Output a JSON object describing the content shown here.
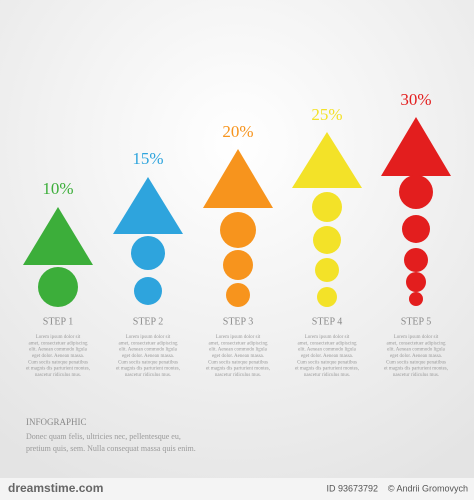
{
  "steps": [
    {
      "percent": "10%",
      "label": "STEP 1",
      "color": "#3cae3a",
      "body": [
        "Lorem ipsum dolor sit",
        "amet, consectetuer adipiscing",
        "elit. Aenean commodo ligula",
        "eget dolor. Aenean massa.",
        "Cum sociis natoque penatibus",
        "et magnis dis parturient montes,",
        "nascetur ridiculus mus."
      ]
    },
    {
      "percent": "15%",
      "label": "STEP 2",
      "color": "#2ea4dd",
      "body": [
        "Lorem ipsum dolor sit",
        "amet, consectetuer adipiscing",
        "elit. Aenean commodo ligula",
        "eget dolor. Aenean massa.",
        "Cum sociis natoque penatibus",
        "et magnis dis parturient montes,",
        "nascetur ridiculus mus."
      ]
    },
    {
      "percent": "20%",
      "label": "STEP 3",
      "color": "#f7941d",
      "body": [
        "Lorem ipsum dolor sit",
        "amet, consectetuer adipiscing",
        "elit. Aenean commodo ligula",
        "eget dolor. Aenean massa.",
        "Cum sociis natoque penatibus",
        "et magnis dis parturient montes,",
        "nascetur ridiculus mus."
      ]
    },
    {
      "percent": "25%",
      "label": "STEP 4",
      "color": "#f3e228",
      "body": [
        "Lorem ipsum dolor sit",
        "amet, consectetuer adipiscing",
        "elit. Aenean commodo ligula",
        "eget dolor. Aenean massa.",
        "Cum sociis natoque penatibus",
        "et magnis dis parturient montes,",
        "nascetur ridiculus mus."
      ]
    },
    {
      "percent": "30%",
      "label": "STEP 5",
      "color": "#e31e1e",
      "body": [
        "Lorem ipsum dolor sit",
        "amet, consectetuer adipiscing",
        "elit. Aenean commodo ligula",
        "eget dolor. Aenean massa.",
        "Cum sociis natoque penatibus",
        "et magnis dis parturient montes,",
        "nascetur ridiculus mus."
      ]
    }
  ],
  "footer": {
    "title": "INFOGRAPHIC",
    "lines": [
      "Donec quam felis, ultricies nec, pellentesque eu,",
      "pretium quis, sem. Nulla consequat massa quis enim."
    ]
  },
  "watermark": {
    "site": "dreamstime.com",
    "id": "ID 93673792",
    "author": "© Andrii Gromovych"
  }
}
